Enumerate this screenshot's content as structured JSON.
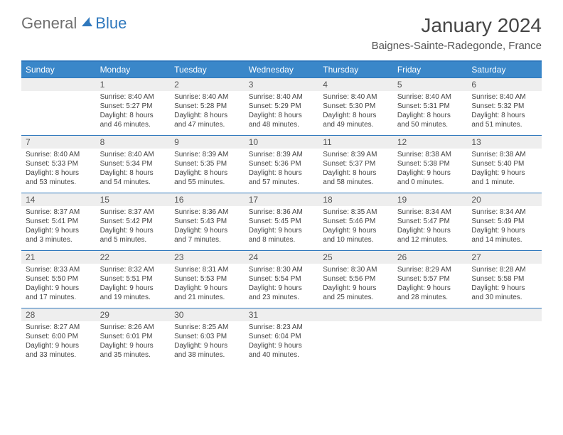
{
  "logo": {
    "textGeneral": "General",
    "textBlue": "Blue"
  },
  "title": "January 2024",
  "location": "Baignes-Sainte-Radegonde, France",
  "colors": {
    "brandBlue": "#2f78bd",
    "headerBlue": "#3a87c9",
    "rowGray": "#eeeeee",
    "text": "#444444"
  },
  "weekdays": [
    "Sunday",
    "Monday",
    "Tuesday",
    "Wednesday",
    "Thursday",
    "Friday",
    "Saturday"
  ],
  "weeks": [
    [
      {
        "day": "",
        "sunrise": "",
        "sunset": "",
        "daylight1": "",
        "daylight2": ""
      },
      {
        "day": "1",
        "sunrise": "Sunrise: 8:40 AM",
        "sunset": "Sunset: 5:27 PM",
        "daylight1": "Daylight: 8 hours",
        "daylight2": "and 46 minutes."
      },
      {
        "day": "2",
        "sunrise": "Sunrise: 8:40 AM",
        "sunset": "Sunset: 5:28 PM",
        "daylight1": "Daylight: 8 hours",
        "daylight2": "and 47 minutes."
      },
      {
        "day": "3",
        "sunrise": "Sunrise: 8:40 AM",
        "sunset": "Sunset: 5:29 PM",
        "daylight1": "Daylight: 8 hours",
        "daylight2": "and 48 minutes."
      },
      {
        "day": "4",
        "sunrise": "Sunrise: 8:40 AM",
        "sunset": "Sunset: 5:30 PM",
        "daylight1": "Daylight: 8 hours",
        "daylight2": "and 49 minutes."
      },
      {
        "day": "5",
        "sunrise": "Sunrise: 8:40 AM",
        "sunset": "Sunset: 5:31 PM",
        "daylight1": "Daylight: 8 hours",
        "daylight2": "and 50 minutes."
      },
      {
        "day": "6",
        "sunrise": "Sunrise: 8:40 AM",
        "sunset": "Sunset: 5:32 PM",
        "daylight1": "Daylight: 8 hours",
        "daylight2": "and 51 minutes."
      }
    ],
    [
      {
        "day": "7",
        "sunrise": "Sunrise: 8:40 AM",
        "sunset": "Sunset: 5:33 PM",
        "daylight1": "Daylight: 8 hours",
        "daylight2": "and 53 minutes."
      },
      {
        "day": "8",
        "sunrise": "Sunrise: 8:40 AM",
        "sunset": "Sunset: 5:34 PM",
        "daylight1": "Daylight: 8 hours",
        "daylight2": "and 54 minutes."
      },
      {
        "day": "9",
        "sunrise": "Sunrise: 8:39 AM",
        "sunset": "Sunset: 5:35 PM",
        "daylight1": "Daylight: 8 hours",
        "daylight2": "and 55 minutes."
      },
      {
        "day": "10",
        "sunrise": "Sunrise: 8:39 AM",
        "sunset": "Sunset: 5:36 PM",
        "daylight1": "Daylight: 8 hours",
        "daylight2": "and 57 minutes."
      },
      {
        "day": "11",
        "sunrise": "Sunrise: 8:39 AM",
        "sunset": "Sunset: 5:37 PM",
        "daylight1": "Daylight: 8 hours",
        "daylight2": "and 58 minutes."
      },
      {
        "day": "12",
        "sunrise": "Sunrise: 8:38 AM",
        "sunset": "Sunset: 5:38 PM",
        "daylight1": "Daylight: 9 hours",
        "daylight2": "and 0 minutes."
      },
      {
        "day": "13",
        "sunrise": "Sunrise: 8:38 AM",
        "sunset": "Sunset: 5:40 PM",
        "daylight1": "Daylight: 9 hours",
        "daylight2": "and 1 minute."
      }
    ],
    [
      {
        "day": "14",
        "sunrise": "Sunrise: 8:37 AM",
        "sunset": "Sunset: 5:41 PM",
        "daylight1": "Daylight: 9 hours",
        "daylight2": "and 3 minutes."
      },
      {
        "day": "15",
        "sunrise": "Sunrise: 8:37 AM",
        "sunset": "Sunset: 5:42 PM",
        "daylight1": "Daylight: 9 hours",
        "daylight2": "and 5 minutes."
      },
      {
        "day": "16",
        "sunrise": "Sunrise: 8:36 AM",
        "sunset": "Sunset: 5:43 PM",
        "daylight1": "Daylight: 9 hours",
        "daylight2": "and 7 minutes."
      },
      {
        "day": "17",
        "sunrise": "Sunrise: 8:36 AM",
        "sunset": "Sunset: 5:45 PM",
        "daylight1": "Daylight: 9 hours",
        "daylight2": "and 8 minutes."
      },
      {
        "day": "18",
        "sunrise": "Sunrise: 8:35 AM",
        "sunset": "Sunset: 5:46 PM",
        "daylight1": "Daylight: 9 hours",
        "daylight2": "and 10 minutes."
      },
      {
        "day": "19",
        "sunrise": "Sunrise: 8:34 AM",
        "sunset": "Sunset: 5:47 PM",
        "daylight1": "Daylight: 9 hours",
        "daylight2": "and 12 minutes."
      },
      {
        "day": "20",
        "sunrise": "Sunrise: 8:34 AM",
        "sunset": "Sunset: 5:49 PM",
        "daylight1": "Daylight: 9 hours",
        "daylight2": "and 14 minutes."
      }
    ],
    [
      {
        "day": "21",
        "sunrise": "Sunrise: 8:33 AM",
        "sunset": "Sunset: 5:50 PM",
        "daylight1": "Daylight: 9 hours",
        "daylight2": "and 17 minutes."
      },
      {
        "day": "22",
        "sunrise": "Sunrise: 8:32 AM",
        "sunset": "Sunset: 5:51 PM",
        "daylight1": "Daylight: 9 hours",
        "daylight2": "and 19 minutes."
      },
      {
        "day": "23",
        "sunrise": "Sunrise: 8:31 AM",
        "sunset": "Sunset: 5:53 PM",
        "daylight1": "Daylight: 9 hours",
        "daylight2": "and 21 minutes."
      },
      {
        "day": "24",
        "sunrise": "Sunrise: 8:30 AM",
        "sunset": "Sunset: 5:54 PM",
        "daylight1": "Daylight: 9 hours",
        "daylight2": "and 23 minutes."
      },
      {
        "day": "25",
        "sunrise": "Sunrise: 8:30 AM",
        "sunset": "Sunset: 5:56 PM",
        "daylight1": "Daylight: 9 hours",
        "daylight2": "and 25 minutes."
      },
      {
        "day": "26",
        "sunrise": "Sunrise: 8:29 AM",
        "sunset": "Sunset: 5:57 PM",
        "daylight1": "Daylight: 9 hours",
        "daylight2": "and 28 minutes."
      },
      {
        "day": "27",
        "sunrise": "Sunrise: 8:28 AM",
        "sunset": "Sunset: 5:58 PM",
        "daylight1": "Daylight: 9 hours",
        "daylight2": "and 30 minutes."
      }
    ],
    [
      {
        "day": "28",
        "sunrise": "Sunrise: 8:27 AM",
        "sunset": "Sunset: 6:00 PM",
        "daylight1": "Daylight: 9 hours",
        "daylight2": "and 33 minutes."
      },
      {
        "day": "29",
        "sunrise": "Sunrise: 8:26 AM",
        "sunset": "Sunset: 6:01 PM",
        "daylight1": "Daylight: 9 hours",
        "daylight2": "and 35 minutes."
      },
      {
        "day": "30",
        "sunrise": "Sunrise: 8:25 AM",
        "sunset": "Sunset: 6:03 PM",
        "daylight1": "Daylight: 9 hours",
        "daylight2": "and 38 minutes."
      },
      {
        "day": "31",
        "sunrise": "Sunrise: 8:23 AM",
        "sunset": "Sunset: 6:04 PM",
        "daylight1": "Daylight: 9 hours",
        "daylight2": "and 40 minutes."
      },
      {
        "day": "",
        "sunrise": "",
        "sunset": "",
        "daylight1": "",
        "daylight2": ""
      },
      {
        "day": "",
        "sunrise": "",
        "sunset": "",
        "daylight1": "",
        "daylight2": ""
      },
      {
        "day": "",
        "sunrise": "",
        "sunset": "",
        "daylight1": "",
        "daylight2": ""
      }
    ]
  ]
}
